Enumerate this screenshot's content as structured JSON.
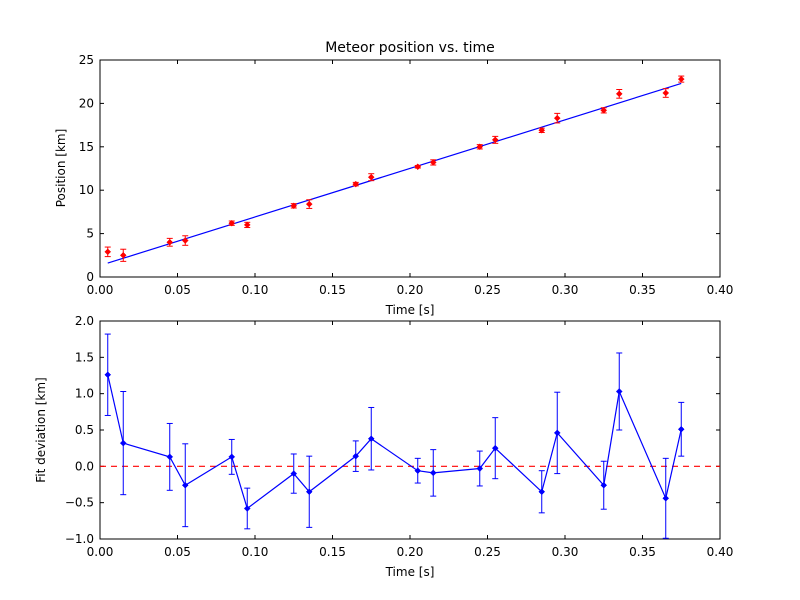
{
  "chart_data": [
    {
      "type": "scatter",
      "title": "Meteor position vs. time",
      "xlabel": "Time [s]",
      "ylabel": "Position [km]",
      "xlim": [
        0.0,
        0.4
      ],
      "ylim": [
        0,
        25
      ],
      "xticks": [
        "0.00",
        "0.05",
        "0.10",
        "0.15",
        "0.20",
        "0.25",
        "0.30",
        "0.35",
        "0.40"
      ],
      "yticks": [
        "0",
        "5",
        "10",
        "15",
        "20",
        "25"
      ],
      "grid": false,
      "colors": {
        "points": "#ff0000",
        "fit": "#0000ff"
      },
      "series": [
        {
          "kind": "points_with_errorbars",
          "x": [
            0.005,
            0.015,
            0.045,
            0.055,
            0.085,
            0.095,
            0.125,
            0.135,
            0.165,
            0.175,
            0.205,
            0.215,
            0.245,
            0.255,
            0.285,
            0.295,
            0.325,
            0.335,
            0.365,
            0.375
          ],
          "y": [
            2.9,
            2.5,
            4.0,
            4.2,
            6.2,
            6.0,
            8.2,
            8.4,
            10.7,
            11.5,
            12.7,
            13.2,
            15.0,
            15.8,
            16.9,
            18.3,
            19.2,
            21.1,
            21.2,
            22.8
          ],
          "yerr": [
            0.55,
            0.7,
            0.45,
            0.55,
            0.25,
            0.3,
            0.25,
            0.5,
            0.2,
            0.4,
            0.15,
            0.3,
            0.25,
            0.4,
            0.25,
            0.55,
            0.3,
            0.5,
            0.5,
            0.35
          ]
        },
        {
          "kind": "fit_line",
          "x": [
            0.005,
            0.375
          ],
          "y": [
            1.6,
            22.3
          ]
        }
      ]
    },
    {
      "type": "line",
      "xlabel": "Time [s]",
      "ylabel": "Fit deviation [km]",
      "xlim": [
        0.0,
        0.4
      ],
      "ylim": [
        -1.0,
        2.0
      ],
      "xticks": [
        "0.00",
        "0.05",
        "0.10",
        "0.15",
        "0.20",
        "0.25",
        "0.30",
        "0.35",
        "0.40"
      ],
      "yticks": [
        "−1.0",
        "−0.5",
        "0.0",
        "0.5",
        "1.0",
        "1.5",
        "2.0"
      ],
      "grid": false,
      "zero_line": {
        "y": 0.0,
        "style": "dashed",
        "color": "#ff0000"
      },
      "colors": {
        "series": "#0000ff"
      },
      "series": [
        {
          "kind": "line_with_errorbars",
          "x": [
            0.005,
            0.015,
            0.045,
            0.055,
            0.085,
            0.095,
            0.125,
            0.135,
            0.165,
            0.175,
            0.205,
            0.215,
            0.245,
            0.255,
            0.285,
            0.295,
            0.325,
            0.335,
            0.365,
            0.375
          ],
          "y": [
            1.26,
            0.32,
            0.13,
            -0.26,
            0.13,
            -0.58,
            -0.1,
            -0.35,
            0.14,
            0.38,
            -0.06,
            -0.09,
            -0.03,
            0.25,
            -0.35,
            0.46,
            -0.26,
            1.03,
            -0.44,
            0.51
          ],
          "yerr": [
            0.56,
            0.71,
            0.46,
            0.57,
            0.24,
            0.28,
            0.27,
            0.49,
            0.21,
            0.43,
            0.17,
            0.32,
            0.24,
            0.42,
            0.29,
            0.56,
            0.33,
            0.53,
            0.55,
            0.37
          ]
        }
      ]
    }
  ]
}
